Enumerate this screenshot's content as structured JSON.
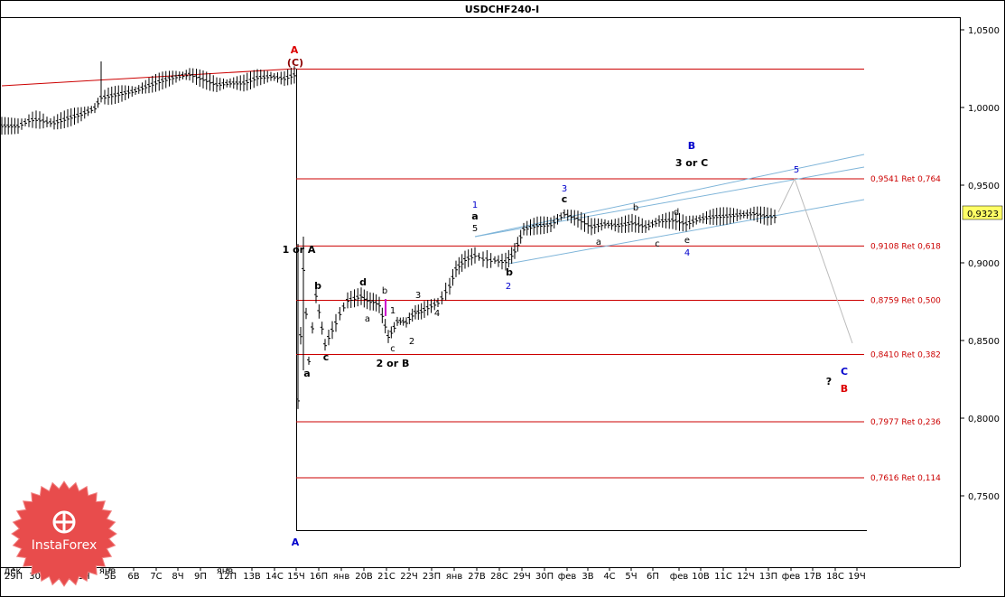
{
  "chart_data": {
    "type": "candlestick",
    "title": "USDCHF240-I",
    "current_price": "0,9323",
    "y_ticks": [
      "1,0500",
      "1,0000",
      "0,9500",
      "0,9000",
      "0,8500",
      "0,8000",
      "0,7500"
    ],
    "x_ticks": [
      "29П",
      "30В",
      "31С",
      "1Ч",
      "5Б",
      "6В",
      "7С",
      "8Ч",
      "9П",
      "12П",
      "13В",
      "14С",
      "15Ч",
      "16П",
      "янв",
      "20В",
      "21С",
      "22Ч",
      "23П",
      "янв",
      "27В",
      "28С",
      "29Ч",
      "30П",
      "фев",
      "3В",
      "4С",
      "5Ч",
      "6П",
      "фев",
      "10В",
      "11С",
      "12Ч",
      "13П",
      "фев",
      "17В",
      "18С",
      "19Ч"
    ],
    "extra_x_tick_labels": [
      "дек",
      "янв",
      "янв"
    ],
    "fib_levels": [
      {
        "label": "0,9541 Ret 0,764",
        "value": 0.9541
      },
      {
        "label": "0,9108 Ret 0,618",
        "value": 0.9108
      },
      {
        "label": "0,8759 Ret 0,500",
        "value": 0.8759
      },
      {
        "label": "0,8410 Ret 0,382",
        "value": 0.841
      },
      {
        "label": "0,7977 Ret 0,236",
        "value": 0.7977
      },
      {
        "label": "0,7616 Ret 0,114",
        "value": 0.7616
      }
    ],
    "wave_labels": {
      "top_A": "A",
      "top_C": "(C)",
      "bottom_A": "A",
      "B_blue": "B",
      "three_or_C": "3 or C",
      "one_or_A": "1 or A",
      "two_or_B": "2 or B",
      "question": "?",
      "C_blue": "C",
      "B_red": "B",
      "w1": "1",
      "w2": "2",
      "w3": "3",
      "w4": "4",
      "w5": "5",
      "a": "a",
      "b": "b",
      "c": "c",
      "d": "d",
      "e": "e",
      "n1": "1",
      "n2": "2",
      "n3": "3",
      "n4": "4",
      "n5": "5"
    },
    "colors": {
      "fib": "#cc0000",
      "channel": "#7fb5d9",
      "blue": "#0000cc",
      "red": "#dd0000",
      "logo": "#e84c4c"
    }
  },
  "logo": {
    "text": "InstaForex"
  }
}
